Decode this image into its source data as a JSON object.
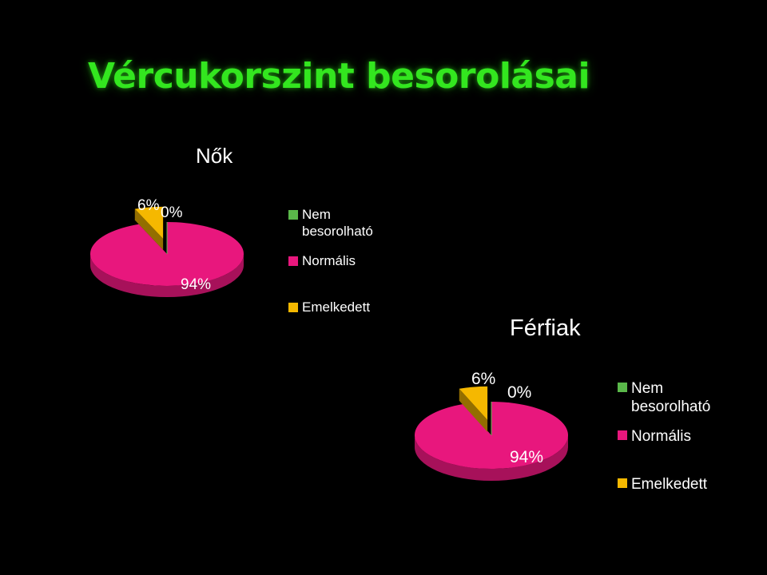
{
  "slide": {
    "title": "Vércukorszint besorolásai"
  },
  "colors": {
    "title": "#33e61f",
    "text": "#ffffff",
    "background": "#000000"
  },
  "chart_data": [
    {
      "type": "pie",
      "title": "Nők",
      "categories": [
        "Nem besorolható",
        "Normális",
        "Emelkedett"
      ],
      "legend_labels": [
        "Nem\nbesorolható",
        "Normális",
        "Emelkedett"
      ],
      "values": [
        0,
        94,
        6
      ],
      "data_labels": [
        "0%",
        "94%",
        "6%"
      ],
      "colors": [
        "#5ab84a",
        "#e8177d",
        "#f5b800"
      ],
      "exploded": "Emelkedett",
      "legend_position": "right"
    },
    {
      "type": "pie",
      "title": "Férfiak",
      "categories": [
        "Nem besorolható",
        "Normális",
        "Emelkedett"
      ],
      "legend_labels": [
        "Nem\nbesorolható",
        "Normális",
        "Emelkedett"
      ],
      "values": [
        0,
        94,
        6
      ],
      "data_labels": [
        "0%",
        "94%",
        "6%"
      ],
      "colors": [
        "#5ab84a",
        "#e8177d",
        "#f5b800"
      ],
      "exploded": "Emelkedett",
      "legend_position": "right"
    }
  ]
}
